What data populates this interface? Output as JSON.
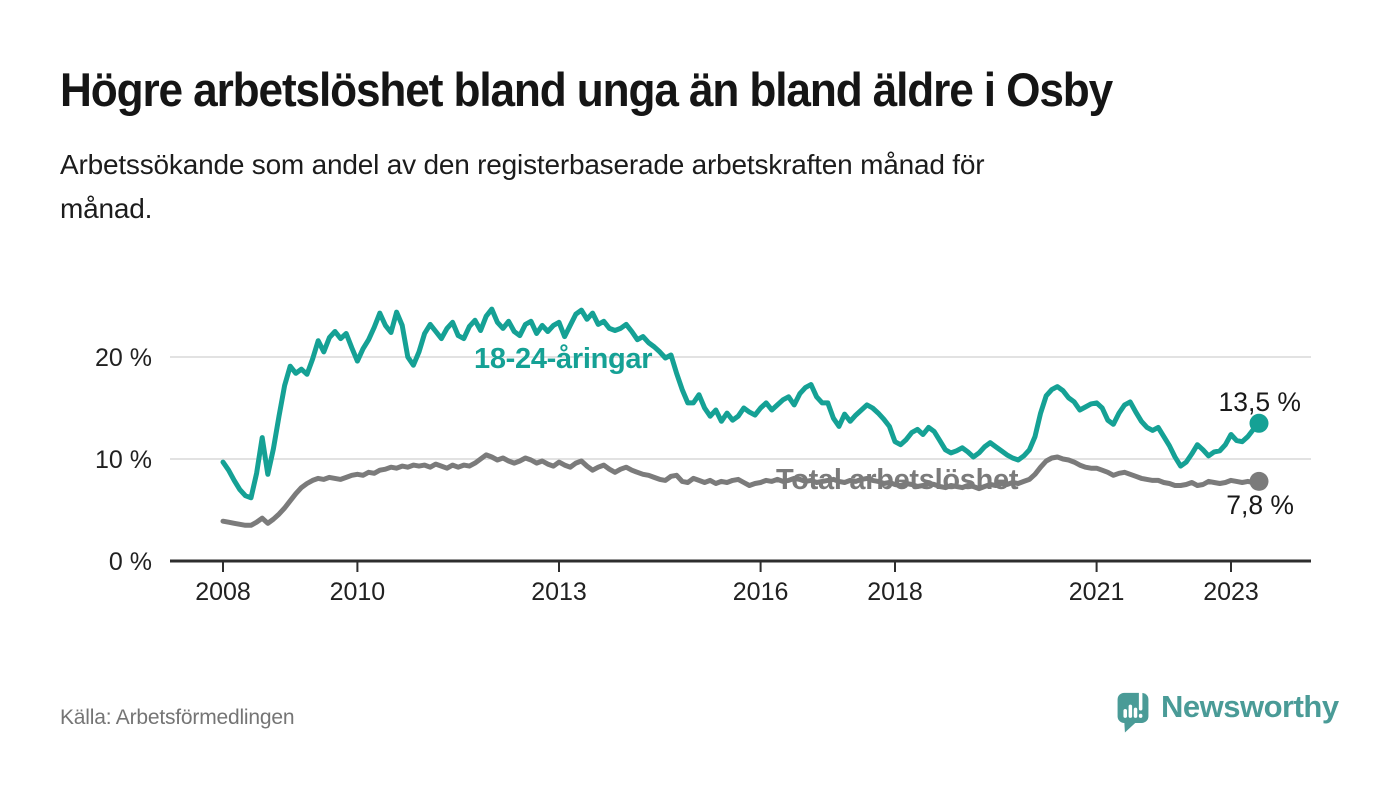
{
  "title": "Högre arbetslöshet bland unga än bland äldre i Osby",
  "subtitle_line1": "Arbetssökande som andel av den registerbaserade arbetskraften månad för",
  "subtitle_line2": "månad.",
  "source": "Källa: Arbetsförmedlingen",
  "logo": {
    "brand": "Newsworthy"
  },
  "colors": {
    "young_line": "#15a195",
    "total_line": "#7b7b7b",
    "axis": "#2e2e2e",
    "gridline": "#d9d9d9",
    "tick_text": "#212121",
    "value_text": "#191919",
    "logo_teal": "#4a9b97",
    "source_text": "#757575"
  },
  "chart_data": {
    "type": "line",
    "title": "Högre arbetslöshet bland unga än bland äldre i Osby",
    "xlabel": "",
    "ylabel": "Arbetssökande som andel av den registerbaserade arbetskraften",
    "grid": "horizontal",
    "legend_position": "inline-labels",
    "ylim": [
      0,
      25.8
    ],
    "x_range": [
      2007.2,
      2024.2
    ],
    "x_ticks": [
      2008,
      2010,
      2013,
      2016,
      2018,
      2021,
      2023
    ],
    "x_tick_labels": [
      "2008",
      "2010",
      "2013",
      "2016",
      "2018",
      "2021",
      "2023"
    ],
    "y_tick_values": [
      0,
      10,
      20
    ],
    "y_tick_labels": [
      "0 %",
      "10 %",
      "20 %"
    ],
    "start_year": 2008.0,
    "step_months": 1,
    "series": [
      {
        "name": "18-24-åringar",
        "color": "#15a195",
        "end_label": "13,5 %",
        "end_value": 13.5,
        "values": [
          9.7,
          8.9,
          7.9,
          7.0,
          6.4,
          6.2,
          8.6,
          12.1,
          8.5,
          11.0,
          14.2,
          17.2,
          19.1,
          18.4,
          18.8,
          18.3,
          19.8,
          21.6,
          20.5,
          21.9,
          22.5,
          21.8,
          22.3,
          20.9,
          19.6,
          20.8,
          21.7,
          22.9,
          24.3,
          23.1,
          22.4,
          24.4,
          23.1,
          20.0,
          19.2,
          20.5,
          22.3,
          23.2,
          22.5,
          21.8,
          22.8,
          23.4,
          22.1,
          21.8,
          23.0,
          23.6,
          22.6,
          24.0,
          24.7,
          23.4,
          22.8,
          23.5,
          22.5,
          22.1,
          23.2,
          23.5,
          22.3,
          23.1,
          22.5,
          23.1,
          23.4,
          22.0,
          23.1,
          24.2,
          24.6,
          23.7,
          24.3,
          23.2,
          23.5,
          22.8,
          22.6,
          22.8,
          23.2,
          22.5,
          21.7,
          22.0,
          21.4,
          21.0,
          20.5,
          19.9,
          20.2,
          18.4,
          16.8,
          15.5,
          15.5,
          16.3,
          15.0,
          14.2,
          14.8,
          13.7,
          14.5,
          13.8,
          14.2,
          15.0,
          14.6,
          14.3,
          15.0,
          15.5,
          14.8,
          15.3,
          15.8,
          16.1,
          15.3,
          16.4,
          17.0,
          17.3,
          16.1,
          15.5,
          15.5,
          14.0,
          13.2,
          14.4,
          13.7,
          14.3,
          14.8,
          15.3,
          15.0,
          14.5,
          13.9,
          13.2,
          11.7,
          11.4,
          11.9,
          12.6,
          12.9,
          12.4,
          13.1,
          12.7,
          11.8,
          10.9,
          10.6,
          10.8,
          11.1,
          10.7,
          10.2,
          10.6,
          11.2,
          11.6,
          11.2,
          10.8,
          10.4,
          10.1,
          9.9,
          10.3,
          10.9,
          12.2,
          14.5,
          16.2,
          16.8,
          17.1,
          16.7,
          16.0,
          15.6,
          14.8,
          15.1,
          15.4,
          15.5,
          15.0,
          13.8,
          13.4,
          14.5,
          15.3,
          15.6,
          14.6,
          13.7,
          13.1,
          12.8,
          13.1,
          12.2,
          11.3,
          10.2,
          9.3,
          9.7,
          10.5,
          11.4,
          10.9,
          10.3,
          10.7,
          10.8,
          11.4,
          12.4,
          11.8,
          11.7,
          12.2,
          12.9,
          13.5
        ]
      },
      {
        "name": "Total arbetslöshet",
        "color": "#7b7b7b",
        "end_label": "7,8 %",
        "end_value": 7.8,
        "values": [
          3.9,
          3.8,
          3.7,
          3.6,
          3.5,
          3.5,
          3.8,
          4.2,
          3.7,
          4.1,
          4.6,
          5.2,
          5.9,
          6.6,
          7.2,
          7.6,
          7.9,
          8.1,
          8.0,
          8.2,
          8.1,
          8.0,
          8.2,
          8.4,
          8.5,
          8.4,
          8.7,
          8.6,
          8.9,
          9.0,
          9.2,
          9.1,
          9.3,
          9.2,
          9.4,
          9.3,
          9.4,
          9.2,
          9.5,
          9.3,
          9.1,
          9.4,
          9.2,
          9.4,
          9.3,
          9.6,
          10.0,
          10.4,
          10.2,
          9.9,
          10.1,
          9.8,
          9.6,
          9.8,
          10.1,
          9.9,
          9.6,
          9.8,
          9.5,
          9.3,
          9.7,
          9.4,
          9.2,
          9.6,
          9.8,
          9.3,
          8.9,
          9.2,
          9.4,
          9.0,
          8.7,
          9.0,
          9.2,
          8.9,
          8.7,
          8.5,
          8.4,
          8.2,
          8.0,
          7.9,
          8.3,
          8.4,
          7.8,
          7.7,
          8.1,
          7.9,
          7.7,
          7.9,
          7.6,
          7.8,
          7.7,
          7.9,
          8.0,
          7.7,
          7.4,
          7.6,
          7.7,
          7.9,
          7.8,
          8.0,
          7.8,
          7.9,
          8.1,
          8.0,
          7.8,
          7.9,
          7.7,
          7.8,
          7.9,
          8.0,
          7.8,
          7.7,
          7.9,
          7.8,
          8.0,
          8.1,
          7.9,
          7.8,
          7.6,
          7.7,
          7.5,
          7.4,
          7.6,
          7.5,
          7.3,
          7.4,
          7.6,
          7.5,
          7.3,
          7.2,
          7.4,
          7.3,
          7.2,
          7.4,
          7.3,
          7.1,
          7.3,
          7.5,
          7.4,
          7.6,
          7.5,
          7.7,
          7.6,
          7.8,
          8.0,
          8.5,
          9.2,
          9.8,
          10.1,
          10.2,
          10.0,
          9.9,
          9.7,
          9.4,
          9.2,
          9.1,
          9.1,
          8.9,
          8.7,
          8.4,
          8.6,
          8.7,
          8.5,
          8.3,
          8.1,
          8.0,
          7.9,
          7.9,
          7.7,
          7.6,
          7.4,
          7.4,
          7.5,
          7.7,
          7.4,
          7.5,
          7.8,
          7.7,
          7.6,
          7.7,
          7.9,
          7.8,
          7.7,
          7.8,
          7.7,
          7.8
        ]
      }
    ]
  }
}
